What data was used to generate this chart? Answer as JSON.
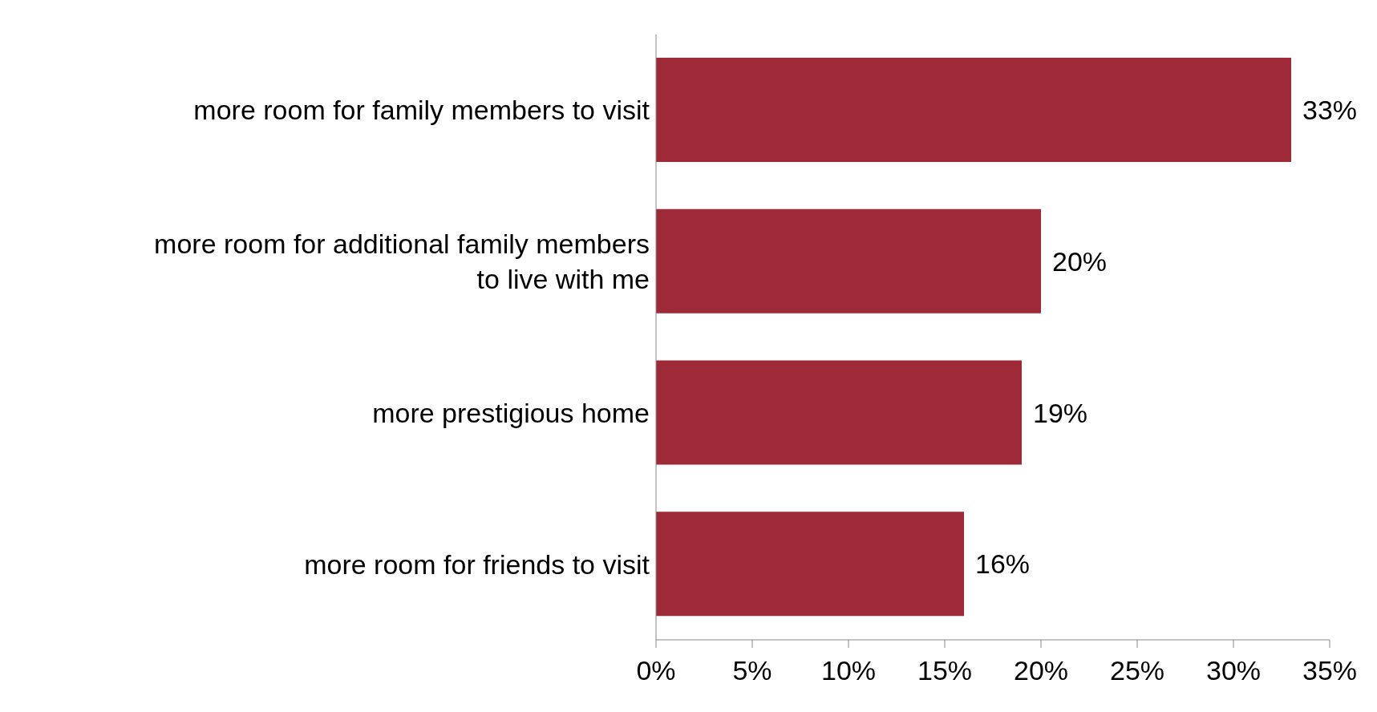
{
  "chart_data": {
    "type": "bar",
    "orientation": "horizontal",
    "categories": [
      "more room for family members to visit",
      "more room for additional family members to live with me",
      "more prestigious home",
      "more room for friends to visit"
    ],
    "values": [
      33,
      20,
      19,
      16
    ],
    "value_labels": [
      "33%",
      "20%",
      "19%",
      "16%"
    ],
    "color": "#9e2a38",
    "xlim": [
      0,
      35
    ],
    "xticks": [
      {
        "value": 0,
        "label": "0%"
      },
      {
        "value": 5,
        "label": "5%"
      },
      {
        "value": 10,
        "label": "10%"
      },
      {
        "value": 15,
        "label": "15%"
      },
      {
        "value": 20,
        "label": "20%"
      },
      {
        "value": 25,
        "label": "25%"
      },
      {
        "value": 30,
        "label": "30%"
      },
      {
        "value": 35,
        "label": "35%"
      }
    ],
    "grid": false,
    "legend": false
  }
}
